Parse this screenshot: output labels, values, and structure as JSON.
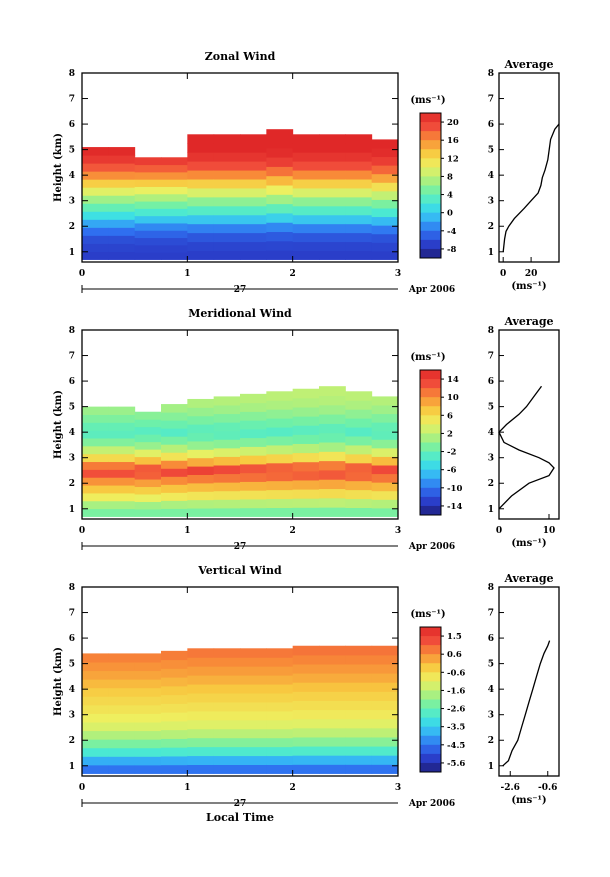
{
  "figure": {
    "xlabel": "Local Time",
    "date_left": "27",
    "date_right": "Apr 2006"
  },
  "chart_data": [
    {
      "type": "heatmap",
      "title": "Zonal Wind",
      "ylabel": "Height (km)",
      "unit_label": "(ms⁻¹)",
      "xlim": [
        0,
        3
      ],
      "xticks": [
        "0",
        "1",
        "2",
        "3"
      ],
      "ylim": [
        0.6,
        8
      ],
      "yticks": [
        "1",
        "2",
        "3",
        "4",
        "5",
        "6",
        "7",
        "8"
      ],
      "colorbar_ticks": [
        "20",
        "16",
        "12",
        "8",
        "4",
        "0",
        "-4",
        "-8"
      ],
      "colorbar_range": [
        -10,
        22
      ],
      "profile_by_height": [
        [
          1.0,
          -7
        ],
        [
          1.5,
          -6
        ],
        [
          2.0,
          -3
        ],
        [
          2.5,
          2
        ],
        [
          3.0,
          6
        ],
        [
          3.5,
          11
        ],
        [
          4.0,
          16
        ],
        [
          4.5,
          20
        ],
        [
          5.0,
          22
        ],
        [
          5.5,
          22
        ]
      ],
      "top_height": [
        5.1,
        5.1,
        4.7,
        4.7,
        5.6,
        5.6,
        5.6,
        5.8,
        5.6,
        5.6,
        5.6,
        5.4
      ],
      "average": {
        "title": "Average",
        "xlabel": "(ms⁻¹)",
        "xlim": [
          -3,
          40
        ],
        "xticks": [
          "0",
          "20"
        ],
        "yticks": [
          "1",
          "2",
          "3",
          "4",
          "5",
          "6",
          "7",
          "8"
        ],
        "heights": [
          1.0,
          1.5,
          1.8,
          2.0,
          2.3,
          2.7,
          3.0,
          3.3,
          3.6,
          3.9,
          4.2,
          4.6,
          5.0,
          5.4,
          5.8,
          6.0
        ],
        "values": [
          0,
          1,
          2,
          4,
          8,
          15,
          20,
          25,
          27,
          28,
          30,
          32,
          33,
          34,
          37,
          40
        ]
      }
    },
    {
      "type": "heatmap",
      "title": "Meridional Wind",
      "ylabel": "Height (km)",
      "unit_label": "(ms⁻¹)",
      "xlim": [
        0,
        3
      ],
      "xticks": [
        "0",
        "1",
        "2",
        "3"
      ],
      "ylim": [
        0.6,
        8
      ],
      "yticks": [
        "1",
        "2",
        "3",
        "4",
        "5",
        "6",
        "7",
        "8"
      ],
      "colorbar_ticks": [
        "14",
        "10",
        "6",
        "2",
        "-2",
        "-6",
        "-10",
        "-14"
      ],
      "colorbar_range": [
        -16,
        16
      ],
      "profile_by_height": [
        [
          1.0,
          -1
        ],
        [
          1.5,
          5
        ],
        [
          2.0,
          9
        ],
        [
          2.5,
          14
        ],
        [
          3.0,
          6
        ],
        [
          3.5,
          0
        ],
        [
          4.0,
          -3
        ],
        [
          4.5,
          -1
        ],
        [
          5.0,
          1
        ],
        [
          5.5,
          2
        ]
      ],
      "top_height": [
        5.0,
        5.0,
        4.8,
        5.1,
        5.3,
        5.4,
        5.5,
        5.6,
        5.7,
        5.8,
        5.6,
        5.4
      ],
      "average": {
        "title": "Average",
        "xlabel": "(ms⁻¹)",
        "xlim": [
          0,
          12
        ],
        "xticks": [
          "0",
          "10"
        ],
        "yticks": [
          "1",
          "2",
          "3",
          "4",
          "5",
          "6",
          "7",
          "8"
        ],
        "heights": [
          1.0,
          1.5,
          2.0,
          2.3,
          2.6,
          2.8,
          3.0,
          3.3,
          3.6,
          4.0,
          4.3,
          4.7,
          5.0,
          5.4,
          5.8
        ],
        "values": [
          0,
          2.5,
          6,
          10,
          11,
          10,
          8,
          4,
          1,
          0,
          1.5,
          4,
          5.5,
          7,
          8.5
        ]
      }
    },
    {
      "type": "heatmap",
      "title": "Vertical Wind",
      "ylabel": "Height (km)",
      "unit_label": "(ms⁻¹)",
      "xlim": [
        0,
        3
      ],
      "xticks": [
        "0",
        "1",
        "2",
        "3"
      ],
      "ylim": [
        0.6,
        8
      ],
      "yticks": [
        "1",
        "2",
        "3",
        "4",
        "5",
        "6",
        "7",
        "8"
      ],
      "colorbar_ticks": [
        "1.5",
        "0.6",
        "-0.6",
        "-1.6",
        "-2.6",
        "-3.5",
        "-4.5",
        "-5.6"
      ],
      "colorbar_range": [
        -6,
        2
      ],
      "profile_by_height": [
        [
          1.0,
          -4.5
        ],
        [
          1.5,
          -3
        ],
        [
          2.0,
          -2
        ],
        [
          2.5,
          -1.2
        ],
        [
          3.0,
          -0.8
        ],
        [
          3.5,
          -0.5
        ],
        [
          4.0,
          -0.2
        ],
        [
          4.5,
          0.2
        ],
        [
          5.0,
          0.5
        ],
        [
          5.5,
          0.8
        ]
      ],
      "top_height": [
        5.4,
        5.4,
        5.4,
        5.5,
        5.6,
        5.6,
        5.6,
        5.6,
        5.7,
        5.7,
        5.7,
        5.7
      ],
      "average": {
        "title": "Average",
        "xlabel": "(ms⁻¹)",
        "xlim": [
          -3.2,
          0
        ],
        "xticks": [
          "-2.6",
          "-0.6"
        ],
        "yticks": [
          "1",
          "2",
          "3",
          "4",
          "5",
          "6",
          "7",
          "8"
        ],
        "heights": [
          1.0,
          1.2,
          1.6,
          2.0,
          2.5,
          3.0,
          3.5,
          4.0,
          4.5,
          5.0,
          5.4,
          5.7,
          5.9
        ],
        "values": [
          -3.0,
          -2.7,
          -2.5,
          -2.2,
          -2.0,
          -1.8,
          -1.6,
          -1.4,
          -1.2,
          -1.0,
          -0.8,
          -0.6,
          -0.5
        ]
      }
    }
  ]
}
